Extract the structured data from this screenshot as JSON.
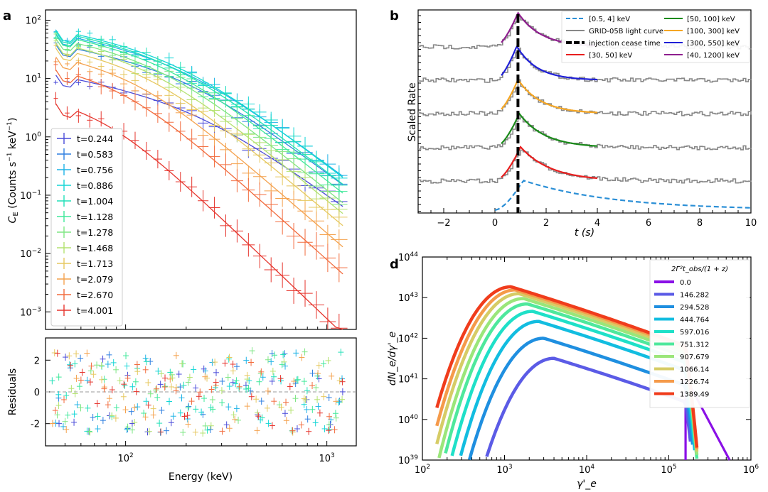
{
  "chart_data": [
    {
      "panel": "a",
      "type": "scatter",
      "xlabel": "Energy (keV)",
      "ylabel": "C_E (Counts s⁻¹ keV⁻¹)",
      "ylabel_parts": {
        "main": "C",
        "sub": "E",
        "rest": " (Counts s",
        "sup1": "−1",
        "mid": " keV",
        "sup2": "−1",
        "end": ")"
      },
      "xscale": "log",
      "yscale": "log",
      "xlim": [
        40,
        1400
      ],
      "ylim": [
        0.0005,
        150
      ],
      "xticks": [
        {
          "v": 100,
          "label": "10",
          "exp": "2"
        },
        {
          "v": 1000,
          "label": "10",
          "exp": "3"
        }
      ],
      "yticks": [
        {
          "v": 0.001,
          "label": "10",
          "exp": "−3"
        },
        {
          "v": 0.01,
          "label": "10",
          "exp": "−2"
        },
        {
          "v": 0.1,
          "label": "10",
          "exp": "−1"
        },
        {
          "v": 1,
          "label": "10",
          "exp": "0"
        },
        {
          "v": 10,
          "label": "10",
          "exp": "1"
        },
        {
          "v": 100,
          "label": "10",
          "exp": "2"
        }
      ],
      "legend_position": "left",
      "series": [
        {
          "name": "t=0.244",
          "color": "#4a4bd9",
          "amp": 12,
          "ebreak": 220,
          "hi": 1.1
        },
        {
          "name": "t=0.583",
          "color": "#2f7fe0",
          "amp": 40,
          "ebreak": 200,
          "hi": 1.2
        },
        {
          "name": "t=0.756",
          "color": "#1fb3e6",
          "amp": 62,
          "ebreak": 190,
          "hi": 1.2
        },
        {
          "name": "t=0.886",
          "color": "#14d6d6",
          "amp": 72,
          "ebreak": 180,
          "hi": 1.25
        },
        {
          "name": "t=1.004",
          "color": "#22e0b8",
          "amp": 68,
          "ebreak": 170,
          "hi": 1.3
        },
        {
          "name": "t=1.128",
          "color": "#3fe89a",
          "amp": 60,
          "ebreak": 160,
          "hi": 1.35
        },
        {
          "name": "t=1.278",
          "color": "#7ee684",
          "amp": 52,
          "ebreak": 150,
          "hi": 1.4
        },
        {
          "name": "t=1.468",
          "color": "#b4e270",
          "amp": 44,
          "ebreak": 140,
          "hi": 1.45
        },
        {
          "name": "t=1.713",
          "color": "#e6c860",
          "amp": 36,
          "ebreak": 130,
          "hi": 1.5
        },
        {
          "name": "t=2.079",
          "color": "#f4a24e",
          "amp": 26,
          "ebreak": 115,
          "hi": 1.6
        },
        {
          "name": "t=2.670",
          "color": "#f26c3e",
          "amp": 16,
          "ebreak": 100,
          "hi": 1.7
        },
        {
          "name": "t=4.001",
          "color": "#e6362e",
          "amp": 4.5,
          "ebreak": 80,
          "hi": 1.9
        }
      ]
    },
    {
      "panel": "a-residuals",
      "type": "scatter",
      "ylabel": "Residuals",
      "xlabel": "Energy (keV)",
      "xscale": "log",
      "xlim": [
        40,
        1400
      ],
      "ylim": [
        -3.4,
        3.4
      ],
      "yticks": [
        -2,
        0,
        2
      ],
      "reference_line": 0
    },
    {
      "panel": "b",
      "type": "line",
      "xlabel": "t (s)",
      "ylabel": "Scaled Rate",
      "xlim": [
        -3,
        10
      ],
      "xticks": [
        -2,
        0,
        2,
        4,
        6,
        8,
        10
      ],
      "injection_cease_time": 0.9,
      "legend_position": "top-right",
      "legend": [
        {
          "name": "[0.5, 4] keV",
          "color": "#2b8fd6",
          "style": "dashed"
        },
        {
          "name": "GRID-05B light curve",
          "color": "#888888",
          "style": "solid"
        },
        {
          "name": "injection cease time",
          "color": "#000000",
          "style": "thick-dashed"
        },
        {
          "name": "[30, 50] keV",
          "color": "#e81e1e",
          "style": "solid"
        },
        {
          "name": "[50, 100] keV",
          "color": "#1a8a1a",
          "style": "solid"
        },
        {
          "name": "[100, 300] keV",
          "color": "#f5a623",
          "style": "solid"
        },
        {
          "name": "[300, 550] keV",
          "color": "#1f1fd6",
          "style": "solid"
        },
        {
          "name": "[40, 1200] keV",
          "color": "#8e1f8e",
          "style": "solid"
        }
      ],
      "bands": [
        {
          "name": "[0.5, 4] keV",
          "color": "#2b8fd6",
          "peak_t": 1.1,
          "decay": 3.5
        },
        {
          "name": "[30, 50] keV",
          "color": "#e81e1e",
          "peak_t": 1.0,
          "decay": 1.2
        },
        {
          "name": "[50, 100] keV",
          "color": "#1a8a1a",
          "peak_t": 0.95,
          "decay": 1.0
        },
        {
          "name": "[100, 300] keV",
          "color": "#f5a623",
          "peak_t": 0.9,
          "decay": 0.9
        },
        {
          "name": "[300, 550] keV",
          "color": "#1f1fd6",
          "peak_t": 0.85,
          "decay": 0.8
        },
        {
          "name": "[40, 1200] keV",
          "color": "#8e1f8e",
          "peak_t": 0.9,
          "decay": 0.9
        }
      ]
    },
    {
      "panel": "d",
      "type": "line",
      "xlabel": "γ'_e",
      "ylabel": "dN_e/dγ'_e",
      "xscale": "log",
      "yscale": "log",
      "xlim": [
        100,
        1000000
      ],
      "ylim": [
        1e+39,
        1e+44
      ],
      "xticks": [
        {
          "v": 100,
          "exp": "2"
        },
        {
          "v": 1000,
          "exp": "3"
        },
        {
          "v": 10000,
          "exp": "4"
        },
        {
          "v": 100000,
          "exp": "5"
        },
        {
          "v": 1000000,
          "exp": "6"
        }
      ],
      "yticks": [
        {
          "v": 1e+39,
          "exp": "39"
        },
        {
          "v": 1e+40,
          "exp": "40"
        },
        {
          "v": 1e+41,
          "exp": "41"
        },
        {
          "v": 1e+42,
          "exp": "42"
        },
        {
          "v": 1e+43,
          "exp": "43"
        },
        {
          "v": 1e+44,
          "exp": "44"
        }
      ],
      "legend_title": "2Γ²t_obs/(1 + z)",
      "legend_position": "top-right",
      "series": [
        {
          "name": "0.0",
          "color": "#8a10e6",
          "peak_x": 0,
          "peak_y": 0
        },
        {
          "name": "146.282",
          "color": "#5b5be6",
          "peak_x": 4000,
          "peak_y": 3.2e+41
        },
        {
          "name": "294.528",
          "color": "#1f8fe0",
          "peak_x": 3000,
          "peak_y": 1e+42
        },
        {
          "name": "444.764",
          "color": "#12bde0",
          "peak_x": 2600,
          "peak_y": 2.6e+42
        },
        {
          "name": "597.016",
          "color": "#1fe0c8",
          "peak_x": 2200,
          "peak_y": 4.6e+42
        },
        {
          "name": "751.312",
          "color": "#4ee89c",
          "peak_x": 1900,
          "peak_y": 7e+42
        },
        {
          "name": "907.679",
          "color": "#9ae67a",
          "peak_x": 1700,
          "peak_y": 9.5e+42
        },
        {
          "name": "1066.14",
          "color": "#d6cc66",
          "peak_x": 1500,
          "peak_y": 1.25e+43
        },
        {
          "name": "1226.74",
          "color": "#f59a4a",
          "peak_x": 1350,
          "peak_y": 1.55e+43
        },
        {
          "name": "1389.49",
          "color": "#f03c1c",
          "peak_x": 1200,
          "peak_y": 1.85e+43
        }
      ]
    }
  ],
  "panel_letters": {
    "a": "a",
    "b": "b",
    "d": "d"
  }
}
